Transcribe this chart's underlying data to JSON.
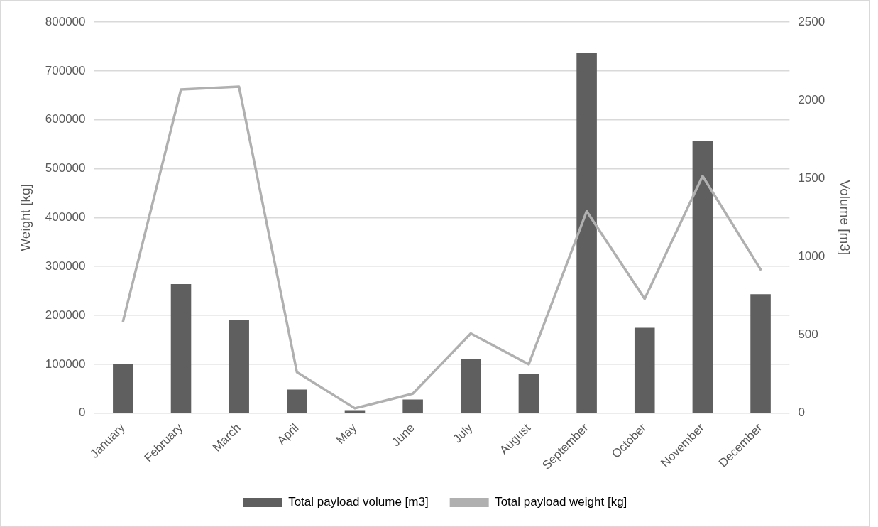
{
  "chart_data": {
    "type": "bar",
    "categories": [
      "January",
      "February",
      "March",
      "April",
      "May",
      "June",
      "July",
      "August",
      "September",
      "October",
      "November",
      "December"
    ],
    "series": [
      {
        "name": "Total payload volume [m3]",
        "axis": "y2",
        "color": "#5f5f5f",
        "values": [
          312,
          825,
          596,
          151,
          19,
          87,
          344,
          250,
          2300,
          546,
          1738,
          760
        ]
      },
      {
        "name": "Total payload weight [kg]",
        "type": "line",
        "color": "#b0b0b0",
        "values": [
          188000,
          662000,
          668000,
          84000,
          10000,
          40000,
          163000,
          100000,
          413000,
          234000,
          485000,
          294000
        ]
      }
    ],
    "ylabel": "Weight [kg]",
    "y2label": "Volume [m3]",
    "ylim": [
      0,
      800000
    ],
    "yticks": [
      0,
      100000,
      200000,
      300000,
      400000,
      500000,
      600000,
      700000,
      800000
    ],
    "y2lim": [
      0,
      2500
    ],
    "y2ticks": [
      0,
      500,
      1000,
      1500,
      2000,
      2500
    ],
    "grid": "y",
    "legend": "bottom",
    "marker": "none"
  }
}
